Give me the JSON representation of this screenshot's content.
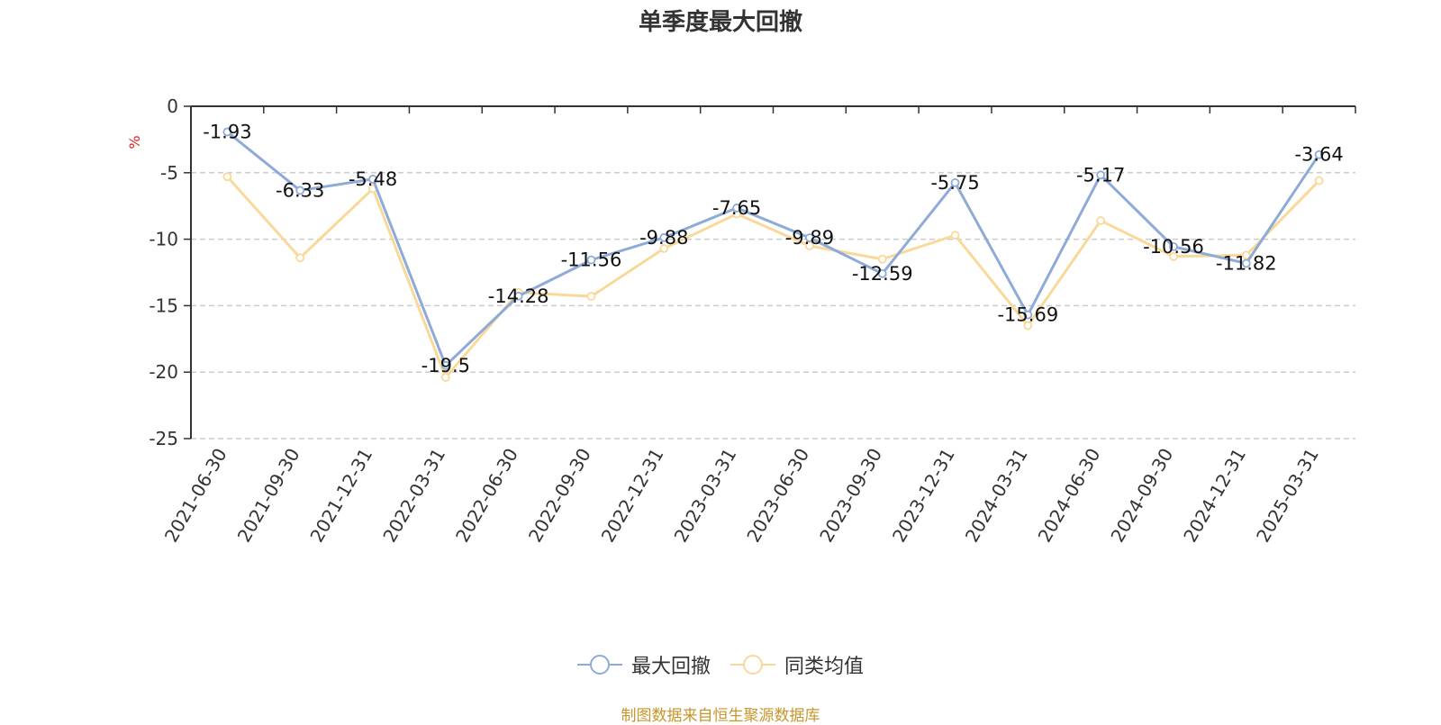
{
  "chart_data": {
    "type": "line",
    "title": "单季度最大回撤",
    "ylabel": "%",
    "xlabel": "",
    "ylim": [
      -25,
      0
    ],
    "yticks": [
      0,
      -5,
      -10,
      -15,
      -20,
      -25
    ],
    "grid": true,
    "legend_position": "bottom",
    "categories": [
      "2021-06-30",
      "2021-09-30",
      "2021-12-31",
      "2022-03-31",
      "2022-06-30",
      "2022-09-30",
      "2022-12-31",
      "2023-03-31",
      "2023-06-30",
      "2023-09-30",
      "2023-12-31",
      "2024-03-31",
      "2024-06-30",
      "2024-09-30",
      "2024-12-31",
      "2025-03-31"
    ],
    "series": [
      {
        "name": "最大回撤",
        "color": "#8eabd8",
        "show_labels": true,
        "values": [
          -1.93,
          -6.33,
          -5.48,
          -19.5,
          -14.28,
          -11.56,
          -9.88,
          -7.65,
          -9.89,
          -12.59,
          -5.75,
          -15.69,
          -5.17,
          -10.56,
          -11.82,
          -3.64
        ]
      },
      {
        "name": "同类均值",
        "color": "#f9d99a",
        "show_labels": false,
        "values": [
          -5.3,
          -11.4,
          -6.2,
          -20.4,
          -14.0,
          -14.3,
          -10.7,
          -8.1,
          -10.5,
          -11.5,
          -9.7,
          -16.5,
          -8.6,
          -11.3,
          -11.2,
          -5.6
        ]
      }
    ]
  },
  "source": "制图数据来自恒生聚源数据库"
}
